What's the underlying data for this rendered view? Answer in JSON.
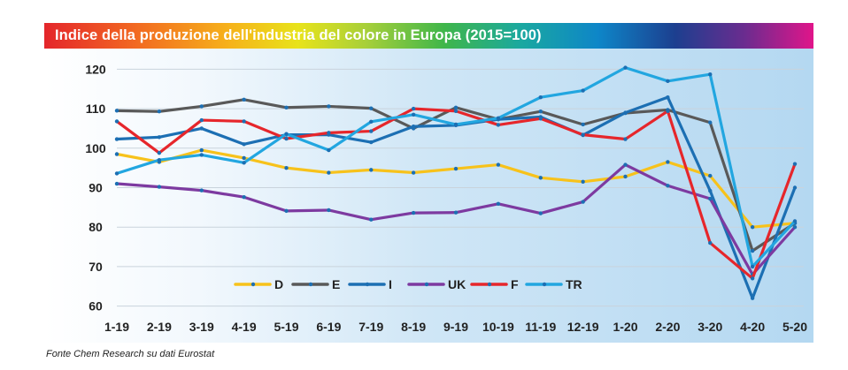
{
  "title": "Indice della produzione dell'industria del colore in Europa (2015=100)",
  "source": "Fonte Chem Research su dati Eurostat",
  "chart_data": {
    "type": "line",
    "categories": [
      "1-19",
      "2-19",
      "3-19",
      "4-19",
      "5-19",
      "6-19",
      "7-19",
      "8-19",
      "9-19",
      "10-19",
      "11-19",
      "12-19",
      "1-20",
      "2-20",
      "3-20",
      "4-20",
      "5-20"
    ],
    "ylim": [
      57,
      123
    ],
    "yticks": [
      60,
      70,
      80,
      90,
      100,
      110,
      120
    ],
    "grid": true,
    "legend_position": "bottom",
    "series": [
      {
        "name": "D",
        "color": "#f7c21b",
        "values": [
          98.5,
          96.5,
          99.5,
          97.5,
          95.0,
          93.8,
          94.5,
          93.8,
          94.8,
          95.8,
          92.5,
          91.5,
          92.8,
          96.5,
          93.0,
          80.0,
          81.0
        ]
      },
      {
        "name": "E",
        "color": "#595959",
        "values": [
          109.5,
          109.3,
          110.6,
          112.3,
          110.3,
          110.6,
          110.1,
          105.0,
          110.3,
          107.3,
          109.3,
          106.0,
          108.9,
          109.7,
          106.5,
          74.0,
          81.0
        ]
      },
      {
        "name": "I",
        "color": "#1c6fb3",
        "values": [
          102.3,
          102.8,
          105.0,
          101.0,
          103.4,
          103.4,
          101.5,
          105.5,
          105.8,
          107.3,
          107.9,
          103.3,
          109.0,
          112.9,
          89.2,
          62.0,
          90.0
        ]
      },
      {
        "name": "UK",
        "color": "#7d3aa0",
        "values": [
          91.0,
          90.2,
          89.3,
          87.6,
          84.1,
          84.3,
          81.9,
          83.6,
          83.7,
          85.9,
          83.5,
          86.4,
          95.8,
          90.5,
          87.2,
          68.0,
          80.0
        ]
      },
      {
        "name": "F",
        "color": "#e6262b",
        "values": [
          106.8,
          98.8,
          107.1,
          106.8,
          102.4,
          103.9,
          104.3,
          110.0,
          109.4,
          105.9,
          107.5,
          103.4,
          102.3,
          109.4,
          76.0,
          67.0,
          96.0
        ]
      },
      {
        "name": "TR",
        "color": "#22a6e0",
        "values": [
          93.6,
          97.0,
          98.3,
          96.3,
          103.6,
          99.5,
          106.7,
          108.5,
          106.0,
          107.6,
          112.9,
          114.6,
          120.4,
          117.0,
          118.7,
          70.0,
          81.5
        ]
      }
    ]
  }
}
